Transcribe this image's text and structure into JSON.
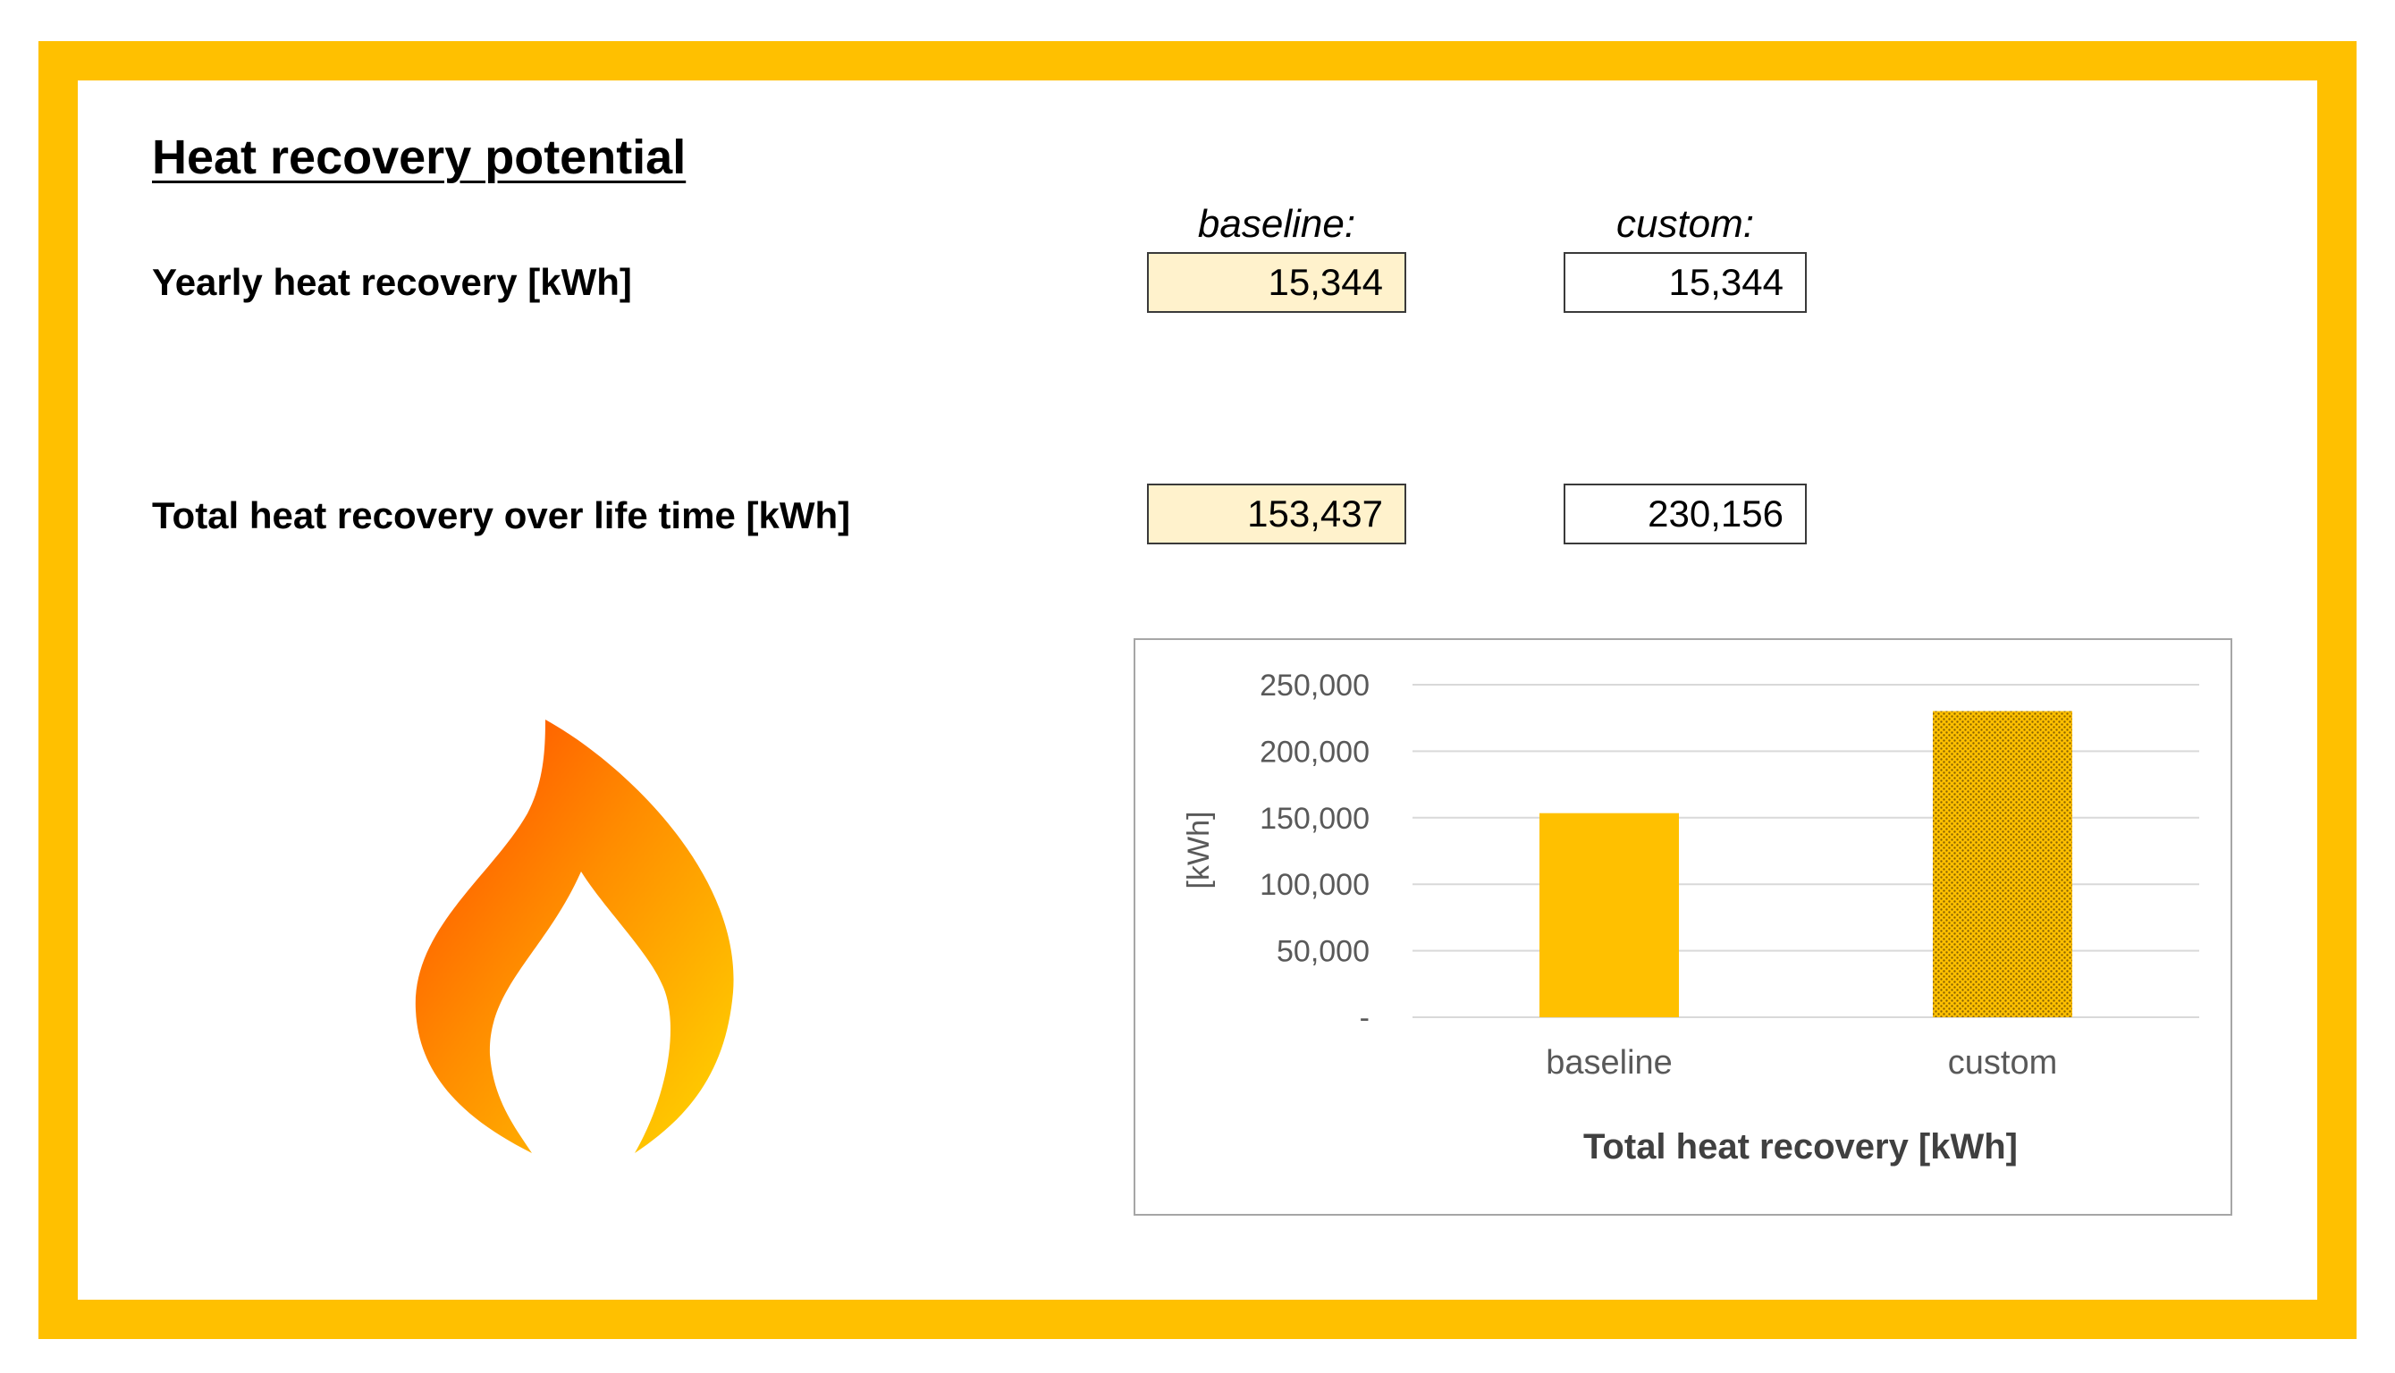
{
  "page": {
    "title": "Heat recovery potential",
    "accent_color": "#FFC000",
    "baseline_fill": "#FFF2CC"
  },
  "columns": {
    "baseline": "baseline:",
    "custom": "custom:"
  },
  "rows": {
    "yearly": {
      "label": "Yearly heat recovery [kWh]",
      "baseline": "15,344",
      "custom": "15,344"
    },
    "total": {
      "label": "Total heat recovery over life time [kWh]",
      "baseline": "153,437",
      "custom": "230,156"
    }
  },
  "icon": {
    "name": "flame-icon",
    "colors": [
      "#FF4500",
      "#FF8C00",
      "#FFD700"
    ]
  },
  "chart_data": {
    "type": "bar",
    "title": "Total heat recovery [kWh]",
    "ylabel": "[kWh]",
    "xlabel": "",
    "categories": [
      "baseline",
      "custom"
    ],
    "values": [
      153437,
      230156
    ],
    "ylim": [
      0,
      250000
    ],
    "yticks": [
      0,
      50000,
      100000,
      150000,
      200000,
      250000
    ],
    "ytick_labels": [
      "-",
      "50,000",
      "100,000",
      "150,000",
      "200,000",
      "250,000"
    ],
    "grid": true,
    "legend": "none",
    "bar_colors": [
      "#FFC000",
      "#FFC000"
    ],
    "bar_patterns": [
      "solid",
      "dotted"
    ]
  }
}
